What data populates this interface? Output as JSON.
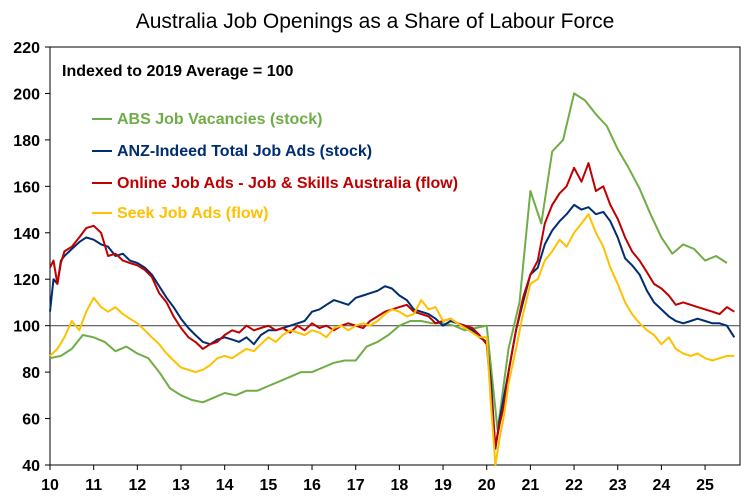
{
  "chart_data": {
    "type": "line",
    "title": "Australia Job Openings as a Share of Labour Force",
    "annotation": "Indexed to 2019 Average = 100",
    "xlabel": "",
    "ylabel": "",
    "xlim": [
      2010,
      2025.8
    ],
    "ylim": [
      40,
      220
    ],
    "x_ticks": [
      "10",
      "11",
      "12",
      "13",
      "14",
      "15",
      "16",
      "17",
      "18",
      "19",
      "20",
      "21",
      "22",
      "23",
      "24",
      "25"
    ],
    "y_ticks": [
      40,
      60,
      80,
      100,
      120,
      140,
      160,
      180,
      200,
      220
    ],
    "reference_line": 100,
    "legend_position": "top-left",
    "grid": false,
    "series": [
      {
        "name": "ABS Job Vacancies (stock)",
        "color": "#70ad47",
        "x": [
          2010.0,
          2010.25,
          2010.5,
          2010.75,
          2011.0,
          2011.25,
          2011.5,
          2011.75,
          2012.0,
          2012.25,
          2012.5,
          2012.75,
          2013.0,
          2013.25,
          2013.5,
          2013.75,
          2014.0,
          2014.25,
          2014.5,
          2014.75,
          2015.0,
          2015.25,
          2015.5,
          2015.75,
          2016.0,
          2016.25,
          2016.5,
          2016.75,
          2017.0,
          2017.25,
          2017.5,
          2017.75,
          2018.0,
          2018.25,
          2018.5,
          2018.75,
          2019.0,
          2019.25,
          2019.5,
          2019.75,
          2020.0,
          2020.25,
          2020.5,
          2020.75,
          2021.0,
          2021.25,
          2021.5,
          2021.75,
          2022.0,
          2022.25,
          2022.5,
          2022.75,
          2023.0,
          2023.25,
          2023.5,
          2023.75,
          2024.0,
          2024.25,
          2024.5,
          2024.75,
          2025.0,
          2025.25,
          2025.5
        ],
        "y": [
          86,
          87,
          90,
          96,
          95,
          93,
          89,
          91,
          88,
          86,
          80,
          73,
          70,
          68,
          67,
          69,
          71,
          70,
          72,
          72,
          74,
          76,
          78,
          80,
          80,
          82,
          84,
          85,
          85,
          91,
          93,
          96,
          100,
          102,
          102,
          101,
          101,
          100,
          98,
          99,
          100,
          55,
          90,
          110,
          158,
          144,
          175,
          180,
          200,
          197,
          191,
          186,
          176,
          168,
          159,
          148,
          138,
          131,
          135,
          133,
          128,
          130,
          127
        ]
      },
      {
        "name": "ANZ-Indeed Total Job Ads (stock)",
        "color": "#002d72",
        "x": [
          2010.0,
          2010.08,
          2010.17,
          2010.25,
          2010.33,
          2010.5,
          2010.67,
          2010.83,
          2011.0,
          2011.17,
          2011.33,
          2011.5,
          2011.67,
          2011.83,
          2012.0,
          2012.17,
          2012.33,
          2012.5,
          2012.67,
          2012.83,
          2013.0,
          2013.17,
          2013.33,
          2013.5,
          2013.67,
          2013.83,
          2014.0,
          2014.17,
          2014.33,
          2014.5,
          2014.67,
          2014.83,
          2015.0,
          2015.17,
          2015.33,
          2015.5,
          2015.67,
          2015.83,
          2016.0,
          2016.17,
          2016.33,
          2016.5,
          2016.67,
          2016.83,
          2017.0,
          2017.17,
          2017.33,
          2017.5,
          2017.67,
          2017.83,
          2018.0,
          2018.17,
          2018.33,
          2018.5,
          2018.67,
          2018.83,
          2019.0,
          2019.17,
          2019.33,
          2019.5,
          2019.67,
          2019.83,
          2020.0,
          2020.1,
          2020.2,
          2020.3,
          2020.4,
          2020.5,
          2020.67,
          2020.83,
          2021.0,
          2021.17,
          2021.33,
          2021.5,
          2021.67,
          2021.83,
          2022.0,
          2022.17,
          2022.33,
          2022.5,
          2022.67,
          2022.83,
          2023.0,
          2023.17,
          2023.33,
          2023.5,
          2023.67,
          2023.83,
          2024.0,
          2024.17,
          2024.33,
          2024.5,
          2024.67,
          2024.83,
          2025.0,
          2025.17,
          2025.33,
          2025.5,
          2025.67
        ],
        "y": [
          106,
          120,
          118,
          128,
          130,
          133,
          136,
          138,
          137,
          135,
          134,
          130,
          131,
          128,
          127,
          125,
          122,
          117,
          112,
          108,
          103,
          99,
          96,
          93,
          92,
          94,
          95,
          94,
          93,
          95,
          92,
          96,
          98,
          98,
          99,
          100,
          101,
          102,
          106,
          107,
          109,
          111,
          110,
          109,
          112,
          113,
          114,
          115,
          117,
          116,
          113,
          111,
          107,
          106,
          105,
          103,
          100,
          102,
          101,
          100,
          98,
          95,
          93,
          75,
          47,
          60,
          70,
          80,
          98,
          110,
          122,
          125,
          135,
          141,
          145,
          148,
          152,
          150,
          151,
          148,
          149,
          145,
          138,
          129,
          126,
          122,
          115,
          110,
          107,
          104,
          102,
          101,
          102,
          103,
          102,
          101,
          101,
          100,
          95
        ]
      },
      {
        "name": "Online Job Ads - Job & Skills Australia (flow)",
        "color": "#c00000",
        "x": [
          2010.0,
          2010.08,
          2010.17,
          2010.25,
          2010.33,
          2010.5,
          2010.67,
          2010.83,
          2011.0,
          2011.17,
          2011.33,
          2011.5,
          2011.67,
          2011.83,
          2012.0,
          2012.17,
          2012.33,
          2012.5,
          2012.67,
          2012.83,
          2013.0,
          2013.17,
          2013.33,
          2013.5,
          2013.67,
          2013.83,
          2014.0,
          2014.17,
          2014.33,
          2014.5,
          2014.67,
          2014.83,
          2015.0,
          2015.17,
          2015.33,
          2015.5,
          2015.67,
          2015.83,
          2016.0,
          2016.17,
          2016.33,
          2016.5,
          2016.67,
          2016.83,
          2017.0,
          2017.17,
          2017.33,
          2017.5,
          2017.67,
          2017.83,
          2018.0,
          2018.17,
          2018.33,
          2018.5,
          2018.67,
          2018.83,
          2019.0,
          2019.17,
          2019.33,
          2019.5,
          2019.67,
          2019.83,
          2020.0,
          2020.1,
          2020.2,
          2020.3,
          2020.4,
          2020.5,
          2020.67,
          2020.83,
          2021.0,
          2021.17,
          2021.33,
          2021.5,
          2021.67,
          2021.83,
          2022.0,
          2022.17,
          2022.33,
          2022.5,
          2022.67,
          2022.83,
          2023.0,
          2023.17,
          2023.33,
          2023.5,
          2023.67,
          2023.83,
          2024.0,
          2024.17,
          2024.33,
          2024.5,
          2024.67,
          2024.83,
          2025.0,
          2025.17,
          2025.33,
          2025.5,
          2025.67
        ],
        "y": [
          125,
          128,
          118,
          127,
          132,
          134,
          138,
          142,
          143,
          140,
          130,
          131,
          128,
          127,
          126,
          124,
          121,
          114,
          110,
          104,
          99,
          95,
          93,
          90,
          92,
          93,
          96,
          98,
          97,
          100,
          98,
          99,
          100,
          98,
          99,
          97,
          100,
          98,
          101,
          99,
          100,
          98,
          100,
          101,
          100,
          99,
          102,
          104,
          106,
          107,
          108,
          109,
          106,
          105,
          104,
          101,
          102,
          103,
          101,
          100,
          99,
          96,
          92,
          70,
          48,
          58,
          66,
          80,
          98,
          112,
          122,
          128,
          144,
          152,
          157,
          160,
          168,
          162,
          170,
          158,
          160,
          152,
          146,
          138,
          132,
          128,
          123,
          118,
          116,
          113,
          109,
          110,
          109,
          108,
          107,
          106,
          105,
          108,
          106
        ]
      },
      {
        "name": "Seek Job Ads (flow)",
        "color": "#ffc000",
        "x": [
          2010.0,
          2010.17,
          2010.33,
          2010.5,
          2010.67,
          2010.83,
          2011.0,
          2011.17,
          2011.33,
          2011.5,
          2011.67,
          2011.83,
          2012.0,
          2012.17,
          2012.33,
          2012.5,
          2012.67,
          2012.83,
          2013.0,
          2013.17,
          2013.33,
          2013.5,
          2013.67,
          2013.83,
          2014.0,
          2014.17,
          2014.33,
          2014.5,
          2014.67,
          2014.83,
          2015.0,
          2015.17,
          2015.33,
          2015.5,
          2015.67,
          2015.83,
          2016.0,
          2016.17,
          2016.33,
          2016.5,
          2016.67,
          2016.83,
          2017.0,
          2017.17,
          2017.33,
          2017.5,
          2017.67,
          2017.83,
          2018.0,
          2018.17,
          2018.33,
          2018.5,
          2018.67,
          2018.83,
          2019.0,
          2019.17,
          2019.33,
          2019.5,
          2019.67,
          2019.83,
          2020.0,
          2020.1,
          2020.2,
          2020.3,
          2020.4,
          2020.5,
          2020.67,
          2020.83,
          2021.0,
          2021.17,
          2021.33,
          2021.5,
          2021.67,
          2021.83,
          2022.0,
          2022.17,
          2022.33,
          2022.5,
          2022.67,
          2022.83,
          2023.0,
          2023.17,
          2023.33,
          2023.5,
          2023.67,
          2023.83,
          2024.0,
          2024.17,
          2024.33,
          2024.5,
          2024.67,
          2024.83,
          2025.0,
          2025.17,
          2025.33,
          2025.5,
          2025.67
        ],
        "y": [
          87,
          90,
          95,
          102,
          98,
          106,
          112,
          108,
          106,
          108,
          105,
          103,
          101,
          98,
          95,
          92,
          88,
          85,
          82,
          81,
          80,
          81,
          83,
          86,
          87,
          86,
          88,
          90,
          89,
          92,
          95,
          93,
          96,
          98,
          97,
          96,
          98,
          97,
          95,
          99,
          100,
          98,
          100,
          101,
          100,
          102,
          105,
          107,
          106,
          104,
          105,
          111,
          107,
          108,
          102,
          103,
          101,
          99,
          97,
          95,
          95,
          65,
          40,
          52,
          62,
          75,
          90,
          105,
          118,
          120,
          128,
          132,
          137,
          134,
          140,
          144,
          148,
          140,
          134,
          125,
          118,
          110,
          105,
          101,
          98,
          96,
          92,
          95,
          90,
          88,
          87,
          88,
          86,
          85,
          86,
          87,
          87
        ]
      }
    ]
  }
}
